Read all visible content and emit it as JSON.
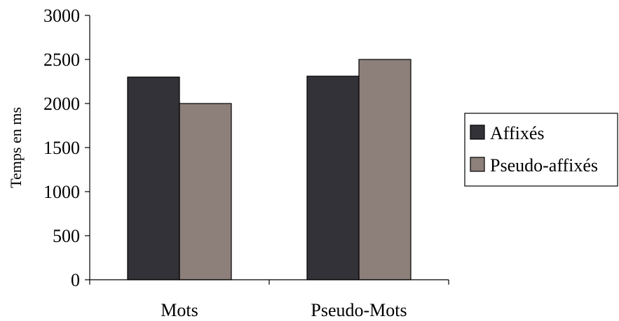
{
  "chart_data": {
    "type": "bar",
    "categories": [
      "Mots",
      "Pseudo-Mots"
    ],
    "series": [
      {
        "name": "Affixés",
        "values": [
          2300,
          2310
        ],
        "color": "#333238"
      },
      {
        "name": "Pseudo-affixés",
        "values": [
          2000,
          2500
        ],
        "color": "#8d7f7a"
      }
    ],
    "title": "",
    "xlabel": "",
    "ylabel": "Temps en ms",
    "ylim": [
      0,
      3000
    ],
    "yticks": [
      0,
      500,
      1000,
      1500,
      2000,
      2500,
      3000
    ],
    "grid": false,
    "legend_position": "right"
  }
}
